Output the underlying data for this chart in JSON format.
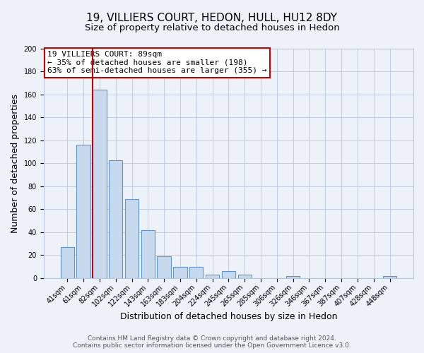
{
  "title": "19, VILLIERS COURT, HEDON, HULL, HU12 8DY",
  "subtitle": "Size of property relative to detached houses in Hedon",
  "xlabel": "Distribution of detached houses by size in Hedon",
  "ylabel": "Number of detached properties",
  "bar_labels": [
    "41sqm",
    "61sqm",
    "82sqm",
    "102sqm",
    "122sqm",
    "143sqm",
    "163sqm",
    "183sqm",
    "204sqm",
    "224sqm",
    "245sqm",
    "265sqm",
    "285sqm",
    "306sqm",
    "326sqm",
    "346sqm",
    "367sqm",
    "387sqm",
    "407sqm",
    "428sqm",
    "448sqm"
  ],
  "bar_values": [
    27,
    116,
    164,
    103,
    69,
    42,
    19,
    10,
    10,
    3,
    6,
    3,
    0,
    0,
    2,
    0,
    0,
    0,
    0,
    0,
    2
  ],
  "bar_color": "#c8d9ee",
  "bar_edge_color": "#5b96cc",
  "annotation_line1": "19 VILLIERS COURT: 89sqm",
  "annotation_line2": "← 35% of detached houses are smaller (198)",
  "annotation_line3": "63% of semi-detached houses are larger (355) →",
  "vline_color": "#cc0000",
  "vline_pos": 1.55,
  "ylim": [
    0,
    200
  ],
  "yticks": [
    0,
    20,
    40,
    60,
    80,
    100,
    120,
    140,
    160,
    180,
    200
  ],
  "footer1": "Contains HM Land Registry data © Crown copyright and database right 2024.",
  "footer2": "Contains public sector information licensed under the Open Government Licence v3.0.",
  "bg_color": "#edf2f9",
  "plot_bg_color": "#edf2f9",
  "grid_color": "#b8c8dc",
  "title_fontsize": 11,
  "subtitle_fontsize": 9.5,
  "annotation_fontsize": 8,
  "axis_label_fontsize": 9,
  "tick_fontsize": 7,
  "footer_fontsize": 6.5
}
